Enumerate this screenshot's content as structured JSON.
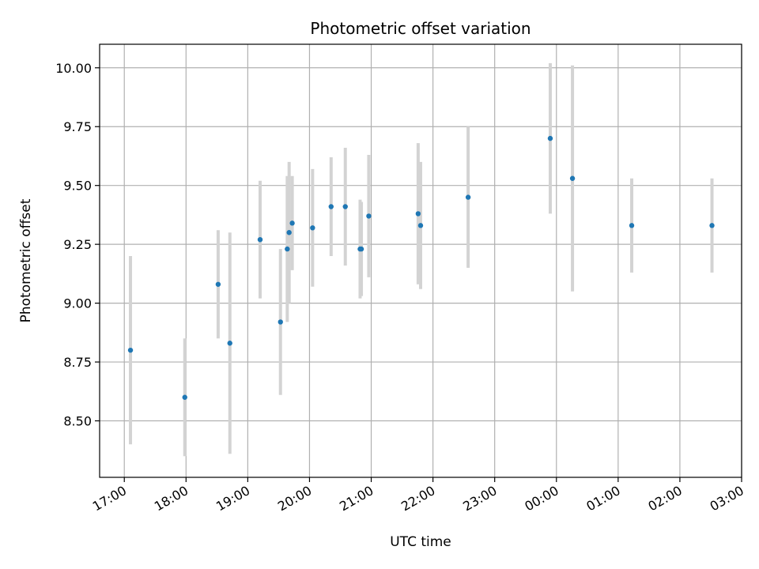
{
  "chart_data": {
    "type": "scatter",
    "title": "Photometric offset variation",
    "xlabel": "UTC time",
    "ylabel": "Photometric offset",
    "x_unit": "hours since 17:00 UTC on the plotted night",
    "xlim": [
      -0.4,
      10.0
    ],
    "ylim": [
      8.26,
      10.1
    ],
    "grid": true,
    "marker_color": "#1f77b4",
    "errorbar_color": "#d3d3d3",
    "x_ticks": [
      {
        "value": 0,
        "label": "17:00"
      },
      {
        "value": 1,
        "label": "18:00"
      },
      {
        "value": 2,
        "label": "19:00"
      },
      {
        "value": 3,
        "label": "20:00"
      },
      {
        "value": 4,
        "label": "21:00"
      },
      {
        "value": 5,
        "label": "22:00"
      },
      {
        "value": 6,
        "label": "23:00"
      },
      {
        "value": 7,
        "label": "00:00"
      },
      {
        "value": 8,
        "label": "01:00"
      },
      {
        "value": 9,
        "label": "02:00"
      },
      {
        "value": 10,
        "label": "03:00"
      }
    ],
    "y_ticks": [
      {
        "value": 8.5,
        "label": "8.50"
      },
      {
        "value": 8.75,
        "label": "8.75"
      },
      {
        "value": 9.0,
        "label": "9.00"
      },
      {
        "value": 9.25,
        "label": "9.25"
      },
      {
        "value": 9.5,
        "label": "9.50"
      },
      {
        "value": 9.75,
        "label": "9.75"
      },
      {
        "value": 10.0,
        "label": "10.00"
      }
    ],
    "points": [
      {
        "x": 0.1,
        "y": 8.8,
        "err": 0.4
      },
      {
        "x": 0.98,
        "y": 8.6,
        "err": 0.25
      },
      {
        "x": 1.52,
        "y": 9.08,
        "err": 0.23
      },
      {
        "x": 1.71,
        "y": 8.83,
        "err": 0.47
      },
      {
        "x": 2.2,
        "y": 9.27,
        "err": 0.25
      },
      {
        "x": 2.53,
        "y": 8.92,
        "err": 0.31
      },
      {
        "x": 2.64,
        "y": 9.23,
        "err": 0.31
      },
      {
        "x": 2.67,
        "y": 9.3,
        "err": 0.3
      },
      {
        "x": 2.72,
        "y": 9.34,
        "err": 0.2
      },
      {
        "x": 3.05,
        "y": 9.32,
        "err": 0.25
      },
      {
        "x": 3.35,
        "y": 9.41,
        "err": 0.21
      },
      {
        "x": 3.58,
        "y": 9.41,
        "err": 0.25
      },
      {
        "x": 3.82,
        "y": 9.23,
        "err": 0.21
      },
      {
        "x": 3.84,
        "y": 9.23,
        "err": 0.2
      },
      {
        "x": 3.96,
        "y": 9.37,
        "err": 0.26
      },
      {
        "x": 4.76,
        "y": 9.38,
        "err": 0.3
      },
      {
        "x": 4.8,
        "y": 9.33,
        "err": 0.27
      },
      {
        "x": 5.57,
        "y": 9.45,
        "err": 0.3
      },
      {
        "x": 6.9,
        "y": 9.7,
        "err": 0.32
      },
      {
        "x": 7.26,
        "y": 9.53,
        "err": 0.48
      },
      {
        "x": 8.22,
        "y": 9.33,
        "err": 0.2
      },
      {
        "x": 9.52,
        "y": 9.33,
        "err": 0.2
      }
    ]
  }
}
